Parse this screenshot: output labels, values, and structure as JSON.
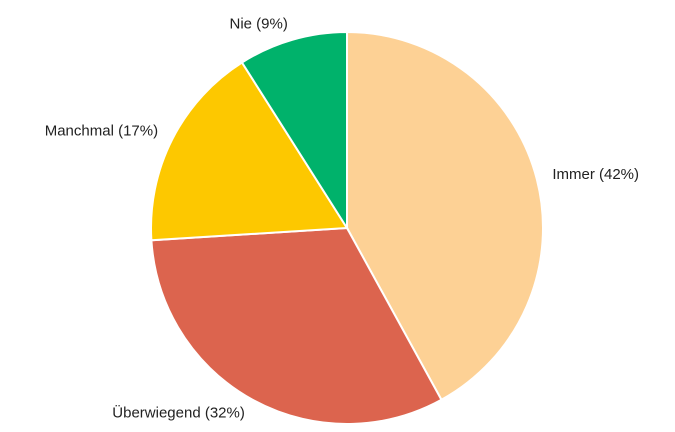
{
  "chart_data": {
    "type": "pie",
    "categories": [
      "Immer (42%)",
      "Überwiegend (32%)",
      "Manchmal (17%)",
      "Nie (9%)"
    ],
    "values": [
      42,
      32,
      17,
      9
    ],
    "colors": [
      "#fdd195",
      "#dc644e",
      "#fdc800",
      "#00b26b"
    ]
  }
}
